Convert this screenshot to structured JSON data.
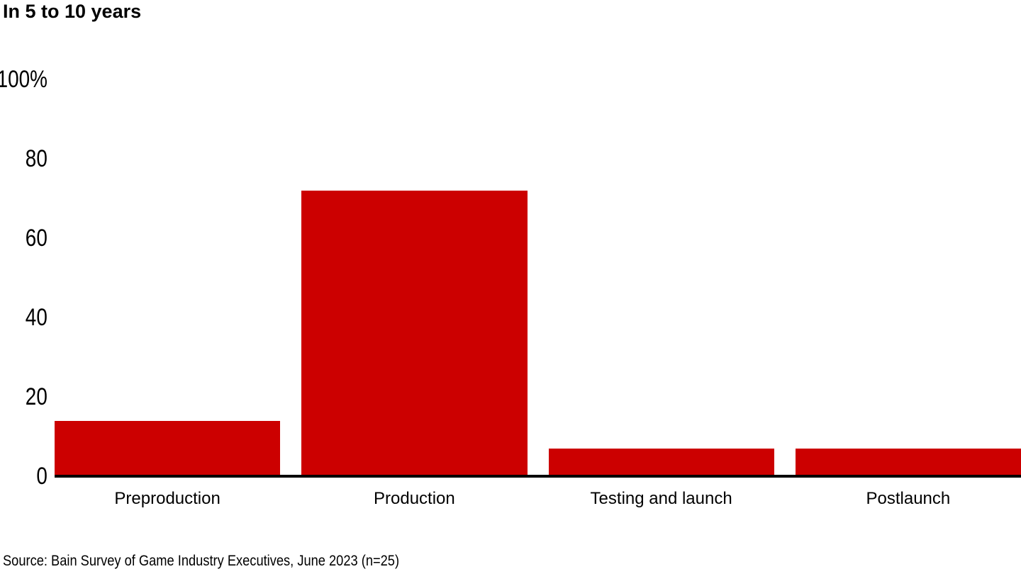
{
  "chart_data": {
    "type": "bar",
    "title": "In 5 to 10 years",
    "categories": [
      "Preproduction",
      "Production",
      "Testing and launch",
      "Postlaunch"
    ],
    "values": [
      14,
      72,
      7,
      7
    ],
    "unit": "%",
    "yticks": [
      {
        "value": 100,
        "label": "100%"
      },
      {
        "value": 80,
        "label": "80"
      },
      {
        "value": 60,
        "label": "60"
      },
      {
        "value": 40,
        "label": "40"
      },
      {
        "value": 20,
        "label": "20"
      },
      {
        "value": 0,
        "label": "0"
      }
    ],
    "ylim": [
      0,
      100
    ],
    "xlabel": "",
    "ylabel": "",
    "grid": false,
    "legend_position": "none",
    "bar_color": "#cc0000",
    "axis_color": "#000000"
  },
  "source": "Source: Bain Survey of Game Industry Executives, June 2023 (n=25)"
}
